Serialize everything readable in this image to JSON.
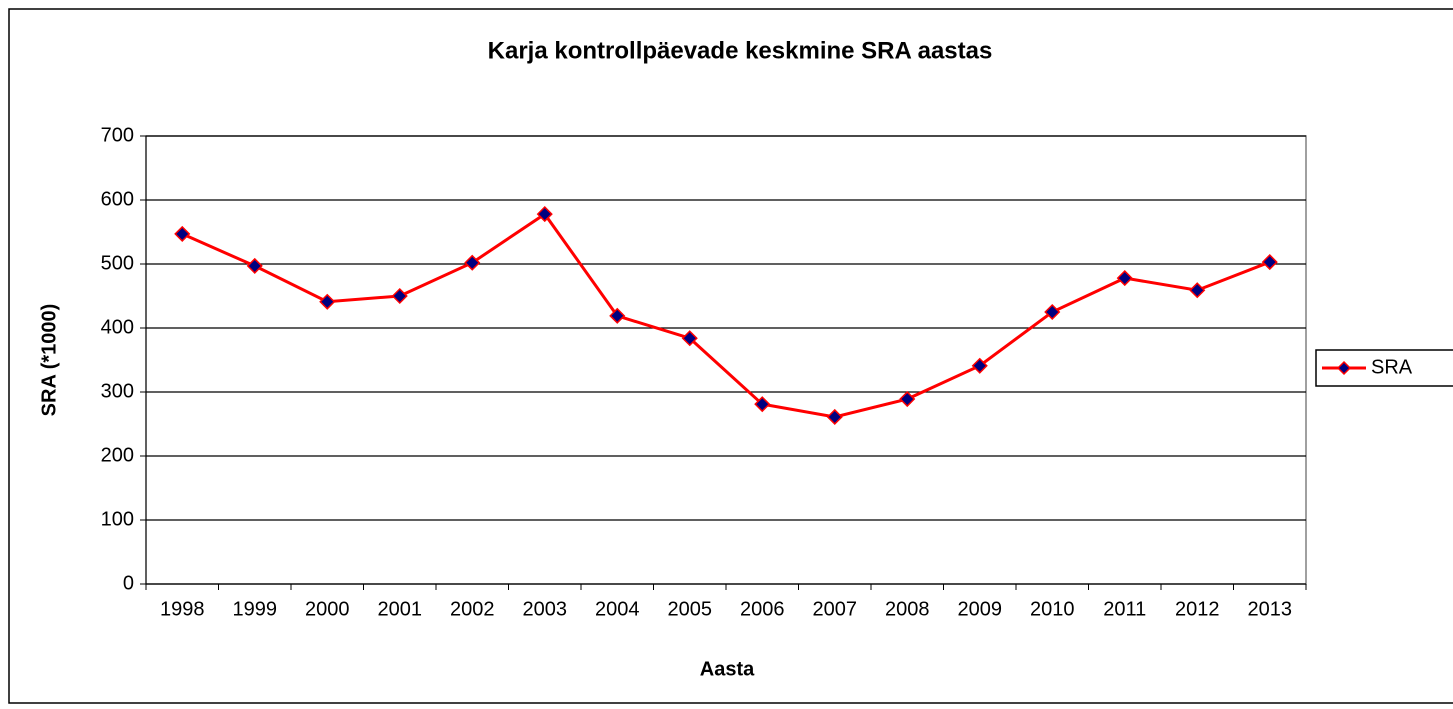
{
  "chart_data": {
    "type": "line",
    "title": "Karja kontrollpäevade keskmine SRA aastas",
    "x_label": "Aasta",
    "y_label": "SRA (*1000)",
    "categories": [
      "1998",
      "1999",
      "2000",
      "2001",
      "2002",
      "2003",
      "2004",
      "2005",
      "2006",
      "2007",
      "2008",
      "2009",
      "2010",
      "2011",
      "2012",
      "2013"
    ],
    "series": [
      {
        "name": "SRA",
        "color": "#ff0000",
        "marker_color": "#000080",
        "values": [
          547,
          497,
          441,
          450,
          502,
          578,
          419,
          384,
          281,
          261,
          289,
          341,
          425,
          478,
          459,
          503
        ]
      }
    ],
    "ylim": [
      0,
      700
    ],
    "yticks": [
      0,
      100,
      200,
      300,
      400,
      500,
      600,
      700
    ],
    "grid": true,
    "legend": "right"
  }
}
